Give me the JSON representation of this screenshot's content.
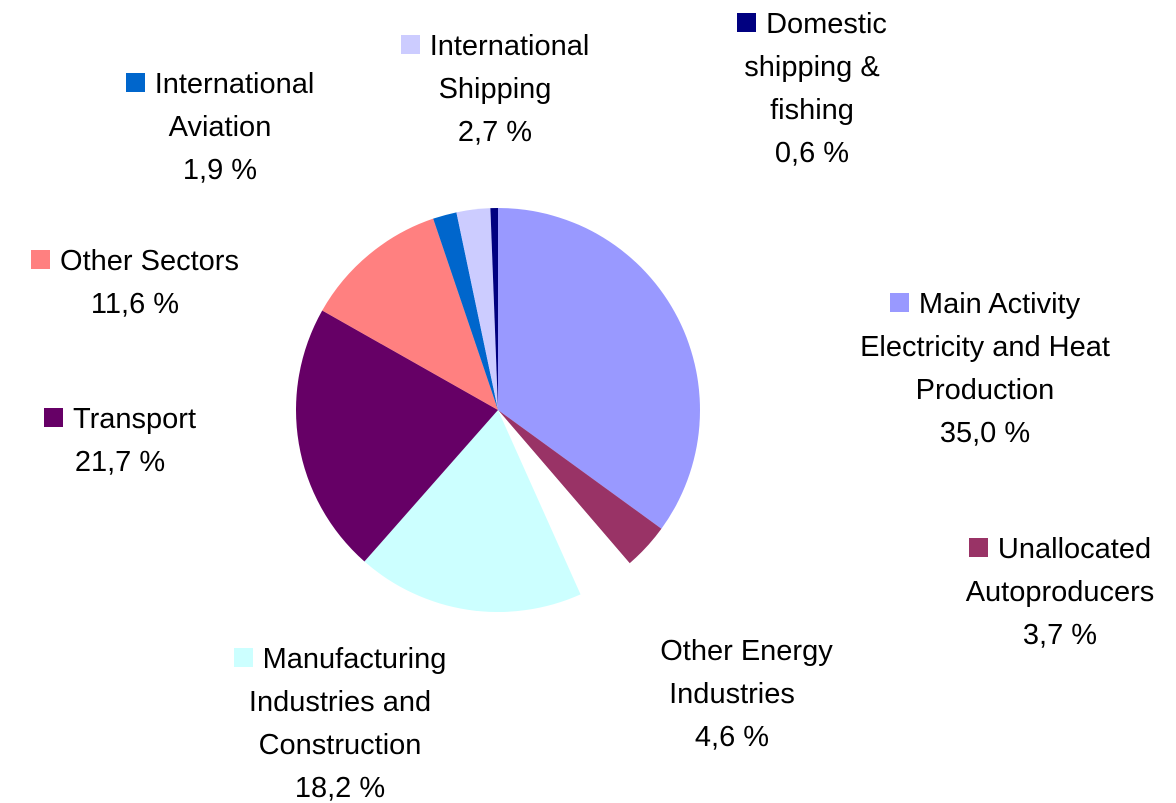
{
  "chart_data": {
    "type": "pie",
    "categories": [
      "Main Activity Electricity and Heat Production",
      "Unallocated Autoproducers",
      "Other Energy Industries",
      "Manufacturing Industries and Construction",
      "Transport",
      "Other Sectors",
      "International Aviation",
      "International Shipping",
      "Domestic shipping & fishing"
    ],
    "values": [
      35.0,
      3.7,
      4.6,
      18.2,
      21.7,
      11.6,
      1.9,
      2.7,
      0.6
    ],
    "value_labels": [
      "35,0 %",
      "3,7 %",
      "4,6 %",
      "18,2 %",
      "21,7 %",
      "11,6 %",
      "1,9 %",
      "2,7 %",
      "0,6 %"
    ],
    "colors": [
      "#9999ff",
      "#993366",
      "#ffffff",
      "#ccffff",
      "#660066",
      "#ff8080",
      "#0066cc",
      "#ccccff",
      "#000080"
    ]
  }
}
